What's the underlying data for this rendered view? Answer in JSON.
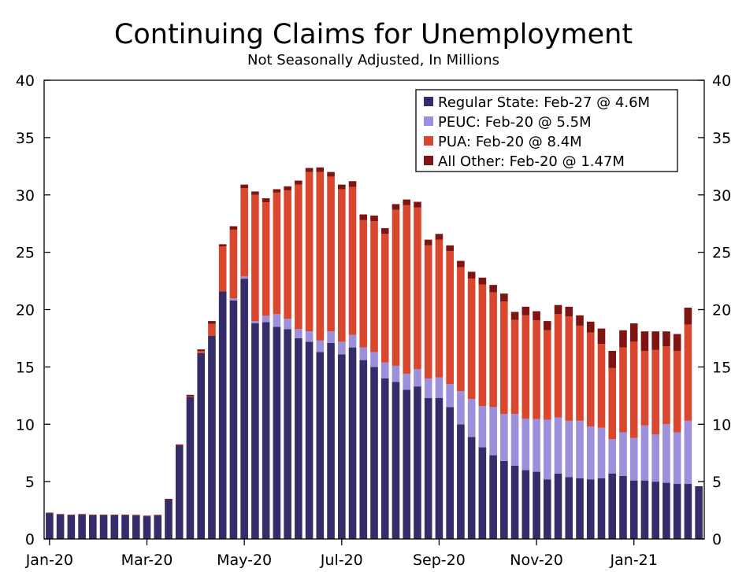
{
  "chart_data": {
    "type": "bar",
    "stacked": true,
    "title": "Continuing Claims for Unemployment",
    "subtitle": "Not Seasonally Adjusted, In Millions",
    "ylim": [
      0,
      40
    ],
    "yticks": [
      0,
      5,
      10,
      15,
      20,
      25,
      30,
      35,
      40
    ],
    "xtick_labels": [
      "Jan-20",
      "Mar-20",
      "May-20",
      "Jul-20",
      "Sep-20",
      "Nov-20",
      "Jan-21"
    ],
    "xtick_bar_index": [
      0,
      9,
      18,
      27,
      36,
      45,
      54
    ],
    "legend_position": "top-right",
    "series": [
      {
        "name": "Regular State: Feb-27 @ 4.6M",
        "color": "#352D69",
        "values": [
          2.25,
          2.12,
          2.07,
          2.12,
          2.07,
          2.07,
          2.07,
          2.07,
          2.05,
          1.98,
          2.05,
          3.42,
          8.14,
          12.4,
          16.2,
          17.7,
          21.6,
          20.8,
          22.7,
          18.8,
          18.9,
          18.5,
          18.3,
          17.5,
          17.2,
          16.3,
          17.1,
          16.1,
          16.7,
          15.6,
          15.0,
          14.0,
          13.7,
          13.0,
          13.3,
          12.3,
          12.3,
          11.5,
          10.0,
          8.9,
          7.99,
          7.3,
          6.8,
          6.4,
          6.0,
          5.86,
          5.2,
          5.7,
          5.4,
          5.3,
          5.2,
          5.3,
          5.7,
          5.5,
          5.1,
          5.1,
          5.0,
          4.9,
          4.8,
          4.8,
          4.6
        ],
        "color_name": "dark-navy"
      },
      {
        "name": "PEUC: Feb-20 @ 5.5M",
        "color": "#9C8FDB",
        "values": [
          0,
          0,
          0,
          0,
          0,
          0,
          0,
          0,
          0,
          0,
          0,
          0,
          0,
          0,
          0,
          0,
          0,
          0.17,
          0.2,
          0.2,
          0.56,
          1.1,
          0.9,
          0.8,
          0.9,
          1.0,
          1.0,
          1.1,
          1.1,
          1.1,
          1.3,
          1.4,
          1.4,
          1.4,
          1.5,
          1.7,
          1.8,
          2.0,
          2.9,
          3.3,
          3.6,
          4.2,
          4.1,
          4.5,
          4.5,
          4.6,
          5.2,
          4.9,
          4.9,
          5.0,
          4.6,
          4.4,
          3.0,
          3.8,
          3.7,
          4.8,
          4.1,
          5.1,
          4.5,
          5.5,
          0
        ],
        "color_name": "lavender"
      },
      {
        "name": "PUA: Feb-20 @ 8.4M",
        "color": "#D9472E",
        "values": [
          0,
          0,
          0,
          0,
          0,
          0,
          0,
          0,
          0,
          0,
          0,
          0,
          0,
          0.05,
          0.18,
          1.05,
          3.9,
          6.0,
          7.7,
          11.0,
          9.9,
          10.6,
          11.2,
          12.6,
          13.9,
          14.7,
          13.5,
          13.3,
          12.9,
          11.1,
          11.4,
          11.2,
          13.6,
          14.7,
          14.1,
          11.6,
          12.0,
          11.6,
          10.8,
          10.5,
          10.6,
          10.0,
          9.8,
          8.2,
          9.0,
          8.6,
          7.8,
          9.0,
          9.1,
          8.3,
          8.2,
          7.3,
          6.2,
          7.4,
          8.4,
          6.5,
          7.4,
          6.8,
          7.1,
          8.4,
          0
        ],
        "color_name": "red-orange"
      },
      {
        "name": "All Other: Feb-20 @ 1.47M",
        "color": "#7E1512",
        "values": [
          0.05,
          0.05,
          0.05,
          0.05,
          0.05,
          0.05,
          0.05,
          0.05,
          0.05,
          0.05,
          0.05,
          0.08,
          0.1,
          0.12,
          0.15,
          0.25,
          0.2,
          0.3,
          0.3,
          0.3,
          0.35,
          0.3,
          0.35,
          0.35,
          0.35,
          0.4,
          0.4,
          0.4,
          0.5,
          0.5,
          0.5,
          0.5,
          0.5,
          0.5,
          0.5,
          0.5,
          0.5,
          0.5,
          0.55,
          0.6,
          0.6,
          0.65,
          0.7,
          0.7,
          0.75,
          0.8,
          0.8,
          0.8,
          0.85,
          0.9,
          0.95,
          1.35,
          1.5,
          1.5,
          1.6,
          1.7,
          1.6,
          1.3,
          1.47,
          1.47,
          0
        ]
      }
    ]
  }
}
